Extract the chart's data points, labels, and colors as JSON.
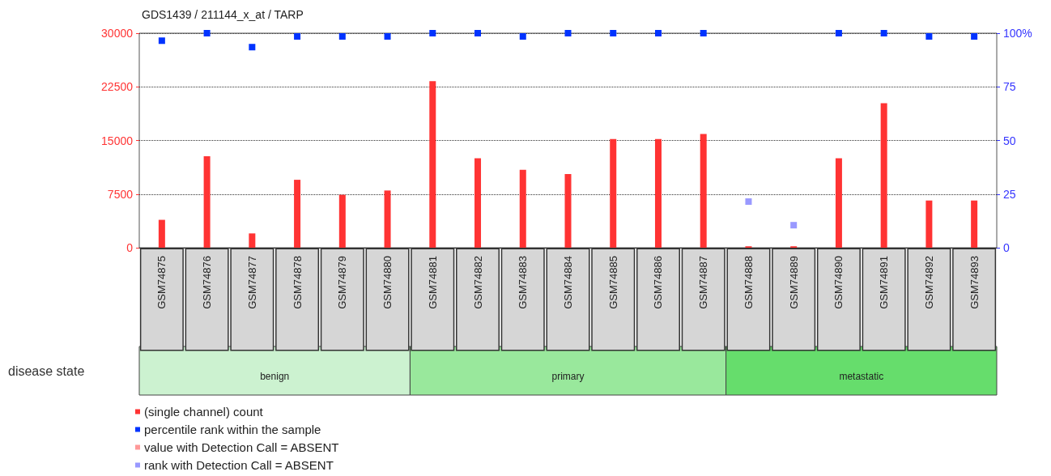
{
  "chart_data": {
    "type": "bar",
    "title": "GDS1439 / 211144_x_at / TARP",
    "categories": [
      "GSM74875",
      "GSM74876",
      "GSM74877",
      "GSM74878",
      "GSM74879",
      "GSM74880",
      "GSM74881",
      "GSM74882",
      "GSM74883",
      "GSM74884",
      "GSM74885",
      "GSM74886",
      "GSM74887",
      "GSM74888",
      "GSM74889",
      "GSM74890",
      "GSM74891",
      "GSM74892",
      "GSM74893"
    ],
    "series": [
      {
        "name": "(single channel) count",
        "color": "#ff3333",
        "values": [
          3900,
          12800,
          2000,
          9500,
          7400,
          8000,
          23300,
          12500,
          10900,
          10300,
          15200,
          15200,
          15900,
          200,
          200,
          12500,
          20200,
          6600,
          6600
        ]
      },
      {
        "name": "percentile rank within the sample",
        "type": "scatter",
        "axis": "y2",
        "color": "#0033ff",
        "values": [
          96.5,
          100,
          93.5,
          98.5,
          98.5,
          98.5,
          100,
          100,
          98.5,
          100,
          100,
          100,
          100,
          null,
          null,
          100,
          100,
          98.5,
          98.5
        ]
      },
      {
        "name": "value with Detection Call = ABSENT",
        "type": "bar",
        "color": "#ff9999",
        "values": [
          null,
          null,
          null,
          null,
          null,
          null,
          null,
          null,
          null,
          null,
          null,
          null,
          null,
          null,
          null,
          null,
          null,
          null,
          null
        ]
      },
      {
        "name": "rank with Detection Call = ABSENT",
        "type": "scatter",
        "axis": "y2",
        "color": "#9999ff",
        "values": [
          null,
          null,
          null,
          null,
          null,
          null,
          null,
          null,
          null,
          null,
          null,
          null,
          null,
          21.5,
          10.5,
          null,
          null,
          null,
          null
        ]
      }
    ],
    "ylim": [
      0,
      30000
    ],
    "yticks": [
      0,
      7500,
      15000,
      22500,
      30000
    ],
    "y2lim": [
      0,
      100
    ],
    "y2ticks": [
      0,
      25,
      50,
      75,
      {
        "value": 100,
        "label": "100%"
      }
    ],
    "annotations": [
      "disease state",
      "benign",
      "primary",
      "metastatic"
    ],
    "grid": "y",
    "legend": "bottom left",
    "marker": "square"
  }
}
